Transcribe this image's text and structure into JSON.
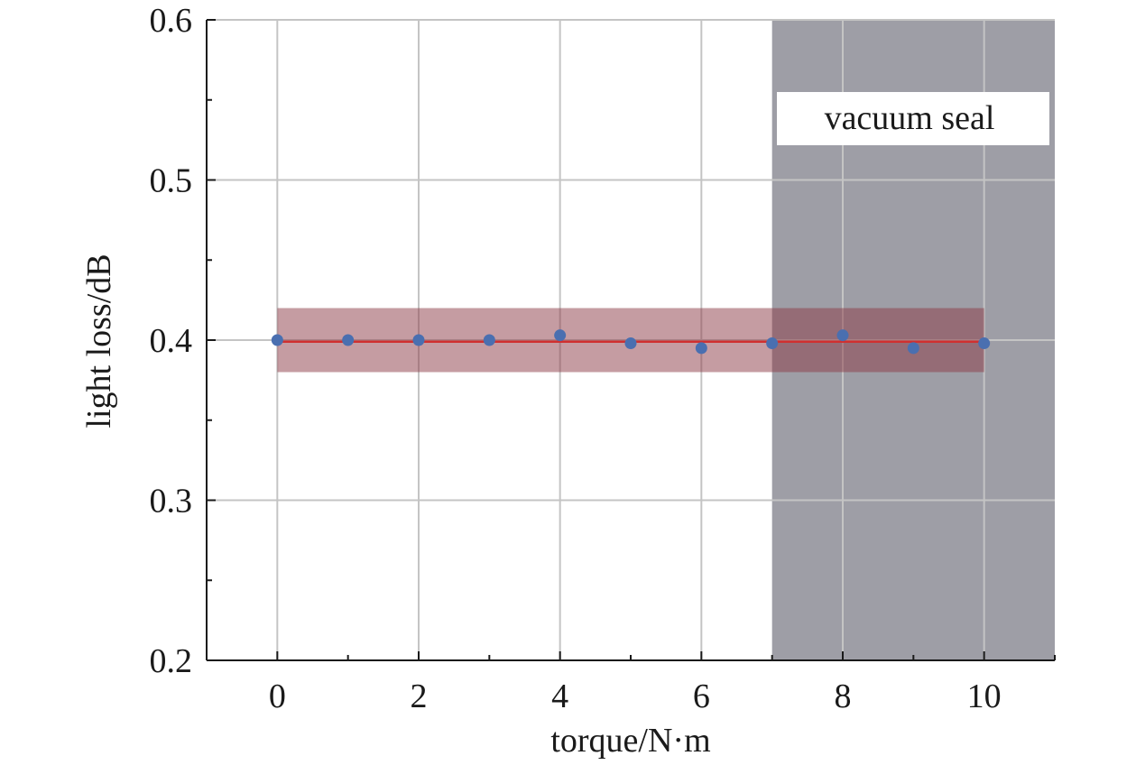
{
  "chart_data": {
    "type": "scatter",
    "xlabel": "torque/N·m",
    "ylabel": "light loss/dB",
    "xlim": [
      -1,
      11
    ],
    "ylim": [
      0.2,
      0.6
    ],
    "xticks": [
      "0",
      "2",
      "4",
      "6",
      "8",
      "10"
    ],
    "xtick_values": [
      0,
      2,
      4,
      6,
      8,
      10
    ],
    "yticks": [
      "0.2",
      "0.3",
      "0.4",
      "0.5",
      "0.6"
    ],
    "ytick_values": [
      0.2,
      0.3,
      0.4,
      0.5,
      0.6
    ],
    "grid": true,
    "series": [
      {
        "x": [
          0,
          1,
          2,
          3,
          4,
          5,
          6,
          7,
          8,
          9,
          10
        ],
        "y": [
          0.4,
          0.4,
          0.4,
          0.4,
          0.403,
          0.398,
          0.395,
          0.398,
          0.403,
          0.395,
          0.398
        ],
        "color": "#4a6fb0"
      }
    ],
    "fit_line": {
      "x": [
        0,
        10
      ],
      "y": [
        0.399,
        0.399
      ],
      "color": "#d03030"
    },
    "band": {
      "x": [
        0,
        10
      ],
      "y": [
        0.38,
        0.42
      ],
      "color": "#8b3a45"
    },
    "shaded_region": {
      "x": [
        7,
        11
      ],
      "color": "#9e9ea6",
      "label": "vacuum seal"
    }
  }
}
